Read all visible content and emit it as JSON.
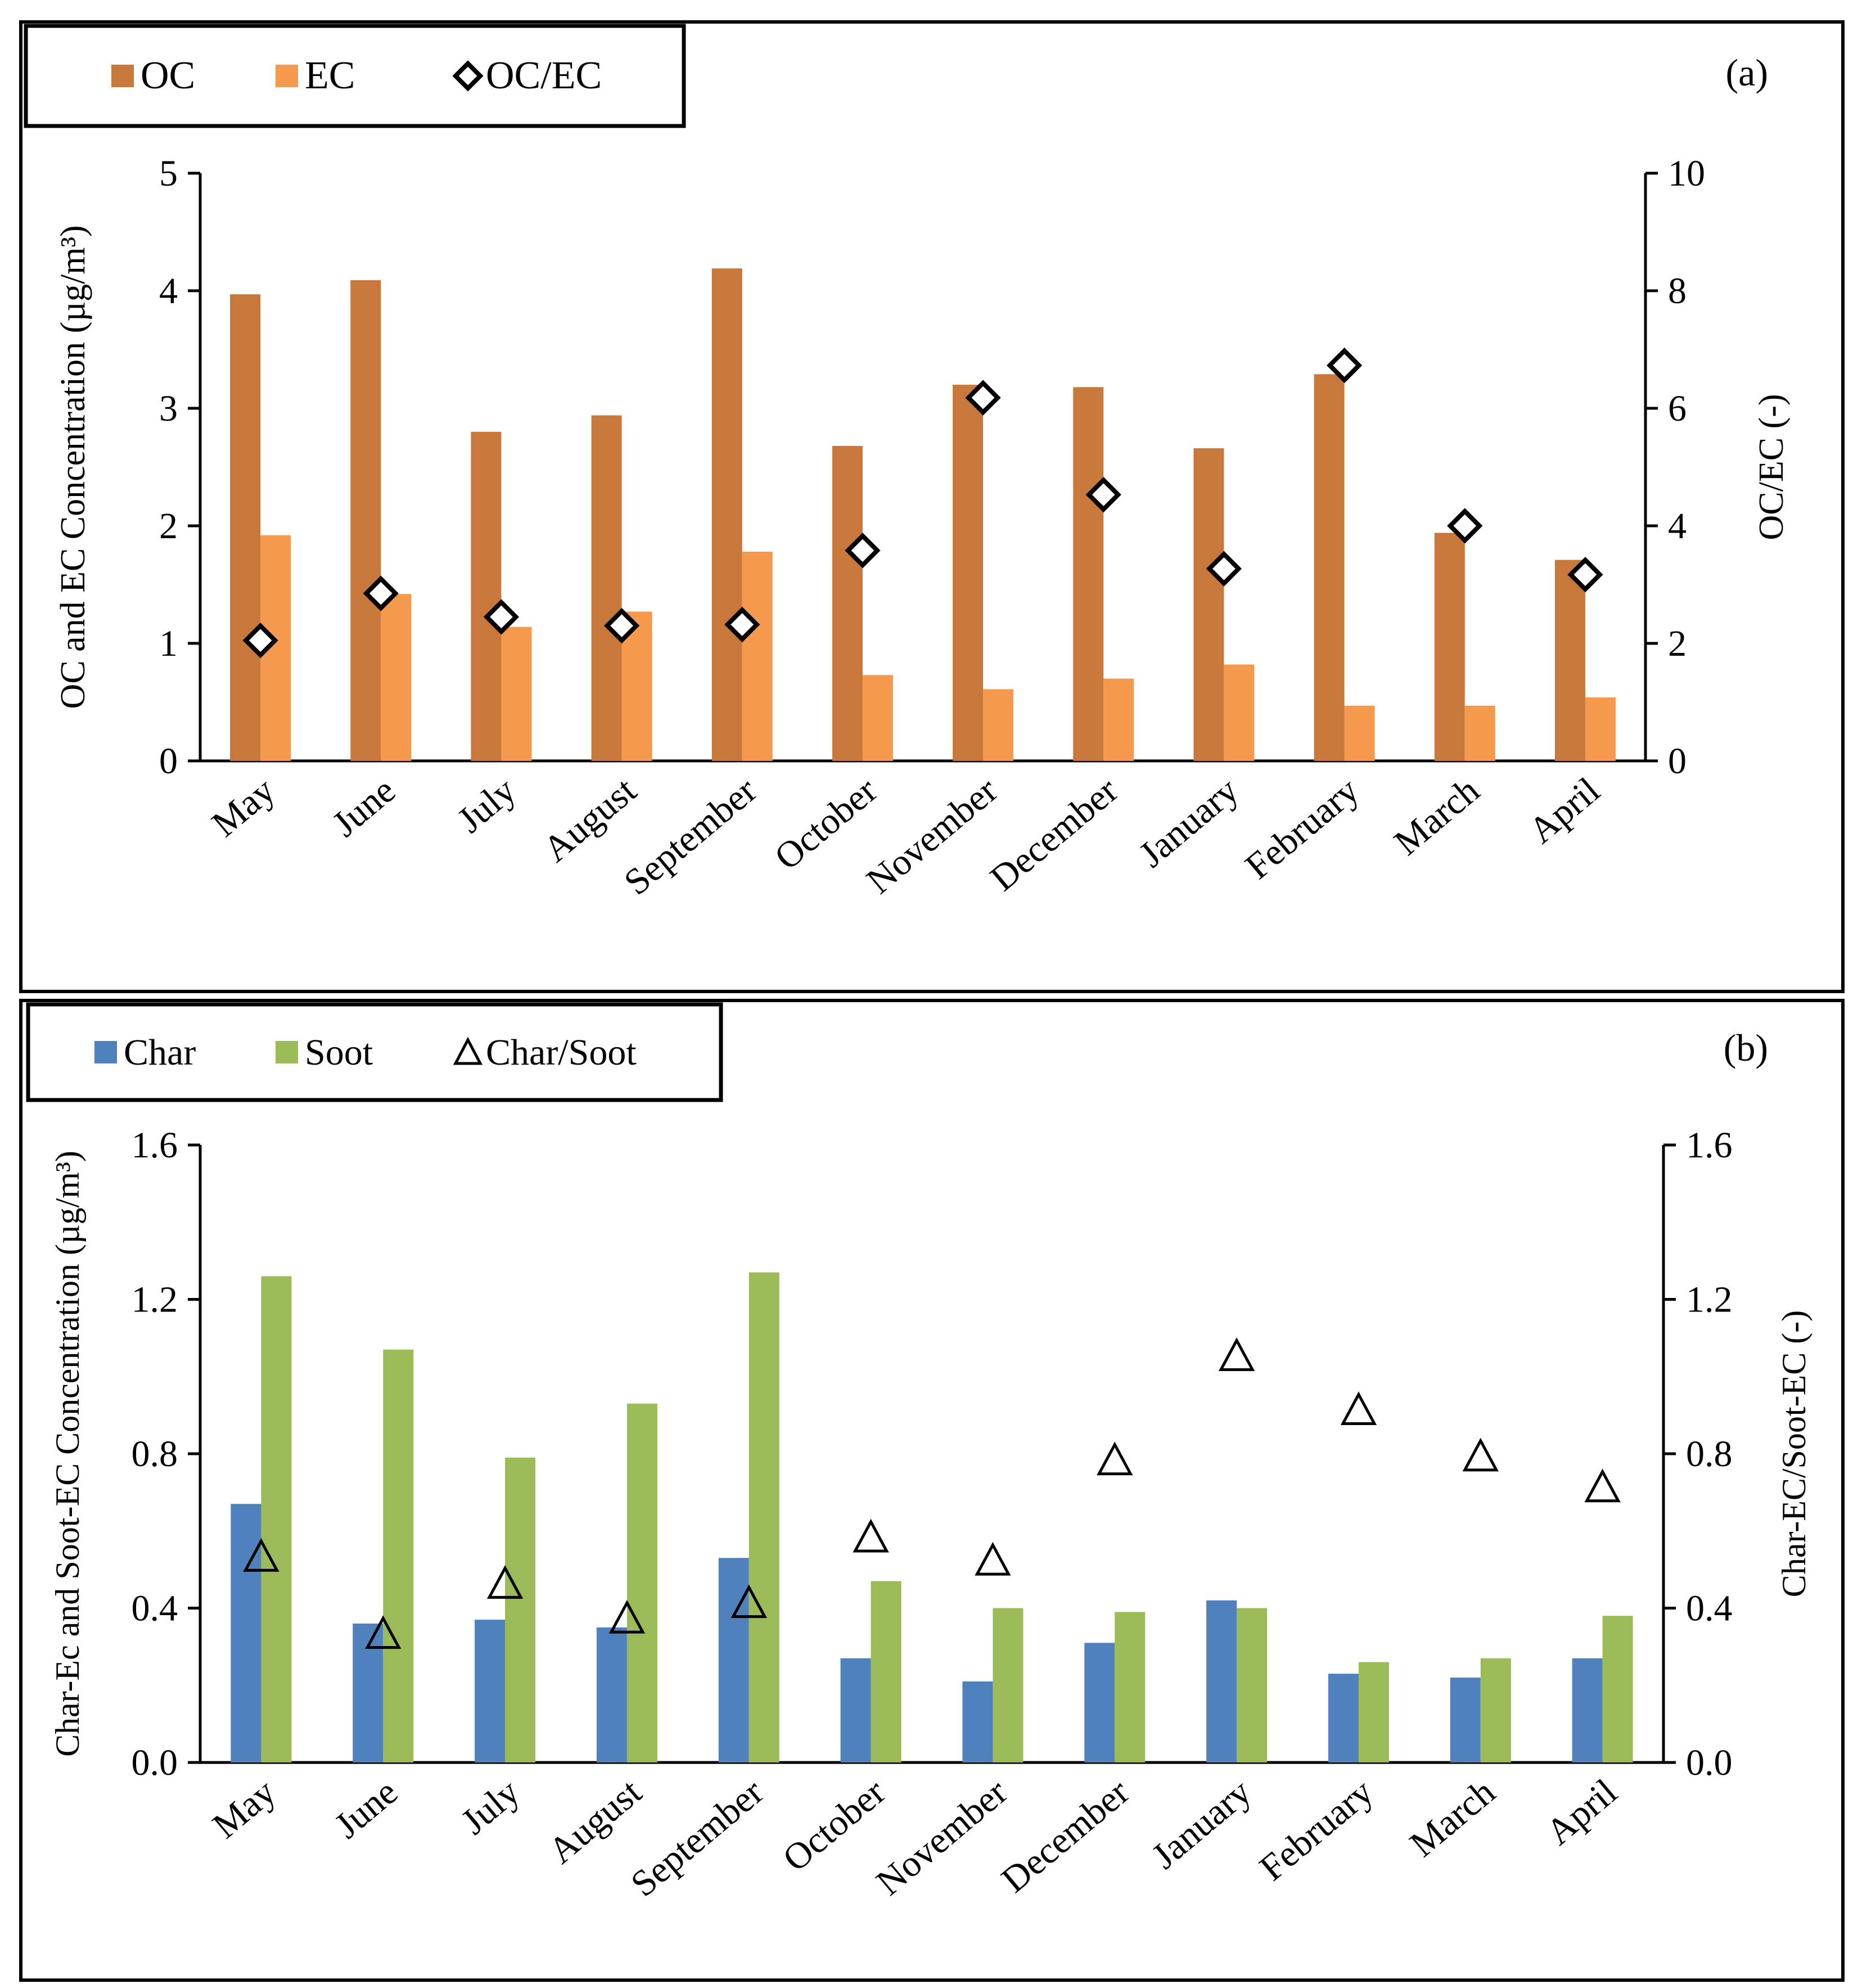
{
  "chart_data": [
    {
      "type": "bar",
      "panel_label": "(a)",
      "categories": [
        "May",
        "June",
        "July",
        "August",
        "September",
        "October",
        "November",
        "December",
        "January",
        "February",
        "March",
        "April"
      ],
      "series": [
        {
          "name": "OC",
          "kind": "bar",
          "axis": "left",
          "color": "#C8783A",
          "values": [
            3.97,
            4.09,
            2.8,
            2.94,
            4.19,
            2.68,
            3.2,
            3.18,
            2.66,
            3.29,
            1.94,
            1.71
          ]
        },
        {
          "name": "EC",
          "kind": "bar",
          "axis": "left",
          "color": "#F5994E",
          "values": [
            1.92,
            1.42,
            1.14,
            1.27,
            1.78,
            0.73,
            0.61,
            0.7,
            0.82,
            0.47,
            0.47,
            0.54
          ]
        },
        {
          "name": "OC/EC",
          "kind": "marker",
          "marker": "diamond",
          "axis": "right",
          "color": "#000000",
          "values": [
            2.05,
            2.85,
            2.45,
            2.3,
            2.32,
            3.58,
            6.18,
            4.53,
            3.27,
            6.73,
            4.0,
            3.17
          ]
        }
      ],
      "ylabel": "OC and EC Concentration (µg/m³)",
      "y2label": "OC/EC (-)",
      "ylim": [
        0,
        5
      ],
      "y2lim": [
        0,
        10
      ],
      "yticks": [
        "0",
        "1",
        "2",
        "3",
        "4",
        "5"
      ],
      "y2ticks": [
        "0",
        "2",
        "4",
        "6",
        "8",
        "10"
      ],
      "legend_position": "top-left"
    },
    {
      "type": "bar",
      "panel_label": "(b)",
      "categories": [
        "May",
        "June",
        "July",
        "August",
        "September",
        "October",
        "November",
        "December",
        "January",
        "February",
        "March",
        "April"
      ],
      "series": [
        {
          "name": "Char",
          "kind": "bar",
          "axis": "left",
          "color": "#4F81BD",
          "values": [
            0.67,
            0.36,
            0.37,
            0.35,
            0.53,
            0.27,
            0.21,
            0.31,
            0.42,
            0.23,
            0.22,
            0.27
          ]
        },
        {
          "name": "Soot",
          "kind": "bar",
          "axis": "left",
          "color": "#9BBB59",
          "values": [
            1.26,
            1.07,
            0.79,
            0.93,
            1.27,
            0.47,
            0.4,
            0.39,
            0.4,
            0.26,
            0.27,
            0.38
          ]
        },
        {
          "name": "Char/Soot",
          "kind": "marker",
          "marker": "triangle",
          "axis": "right",
          "color": "#000000",
          "values": [
            0.53,
            0.33,
            0.46,
            0.37,
            0.41,
            0.58,
            0.52,
            0.78,
            1.05,
            0.91,
            0.79,
            0.71
          ]
        }
      ],
      "ylabel": "Char-Ec and Soot-EC Concentration (µg/m³)",
      "y2label": "Char-EC/Soot-EC (-)",
      "ylim": [
        0,
        1.6
      ],
      "y2lim": [
        0,
        1.6
      ],
      "yticks": [
        "0.0",
        "0.4",
        "0.8",
        "1.2",
        "1.6"
      ],
      "y2ticks": [
        "0.0",
        "0.4",
        "0.8",
        "1.2",
        "1.6"
      ],
      "legend_position": "top-left"
    }
  ]
}
